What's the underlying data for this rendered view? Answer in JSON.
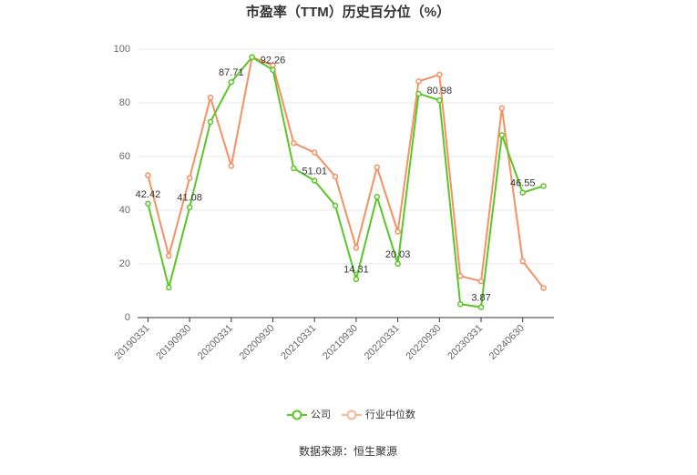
{
  "chart_data": {
    "type": "line",
    "title": "市盈率（TTM）历史百分位（%）",
    "categories": [
      "20190331",
      null,
      "20190930",
      null,
      "20200331",
      null,
      "20200930",
      null,
      "20210331",
      null,
      "20210930",
      null,
      "20220331",
      null,
      "20220930",
      null,
      "20230331",
      null,
      "20240630",
      null
    ],
    "series": [
      {
        "name": "公司",
        "color": "#5ac626",
        "values": [
          42.42,
          11.2,
          41.08,
          72.9,
          87.71,
          97,
          92.26,
          55.6,
          51.01,
          41.7,
          14.31,
          45,
          20.03,
          83.4,
          80.98,
          5,
          3.87,
          68,
          46.55,
          49
        ],
        "value_labels": [
          "42.42",
          null,
          "41.08",
          null,
          "87.71",
          null,
          "92.26",
          null,
          "51.01",
          null,
          "14.31",
          null,
          "20.03",
          null,
          "80.98",
          null,
          "3.87",
          null,
          "46.55",
          null
        ]
      },
      {
        "name": "行业中位数",
        "color": "#f59062",
        "values": [
          53,
          23,
          52,
          82,
          56.5,
          97,
          94,
          65,
          61.5,
          52.5,
          26,
          56,
          32,
          88,
          90.5,
          15.5,
          13.5,
          78,
          21,
          11
        ]
      }
    ],
    "ylim": [
      0,
      100
    ],
    "yticks": [
      0,
      20,
      40,
      60,
      80,
      100
    ],
    "grid": true,
    "source": "数据来源：恒生聚源"
  }
}
